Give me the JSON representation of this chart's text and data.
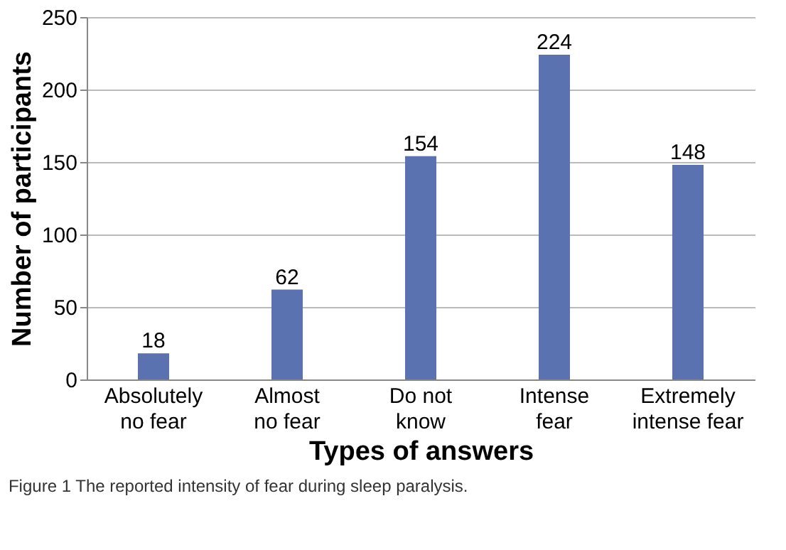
{
  "chart_data": {
    "type": "bar",
    "categories": [
      "Absolutely no fear",
      "Almost no fear",
      "Do not know",
      "Intense fear",
      "Extremely intense fear"
    ],
    "values": [
      18,
      62,
      154,
      224,
      148
    ],
    "color": "#5b72b0",
    "xlabel": "Types of answers",
    "ylabel": "Number of participants",
    "ylim": [
      0,
      250
    ],
    "yticks": [
      0,
      50,
      100,
      150,
      200,
      250
    ],
    "grid": "y",
    "data_labels": true,
    "annotations": [
      "Figure 1 The reported intensity of fear during sleep paralysis."
    ]
  }
}
